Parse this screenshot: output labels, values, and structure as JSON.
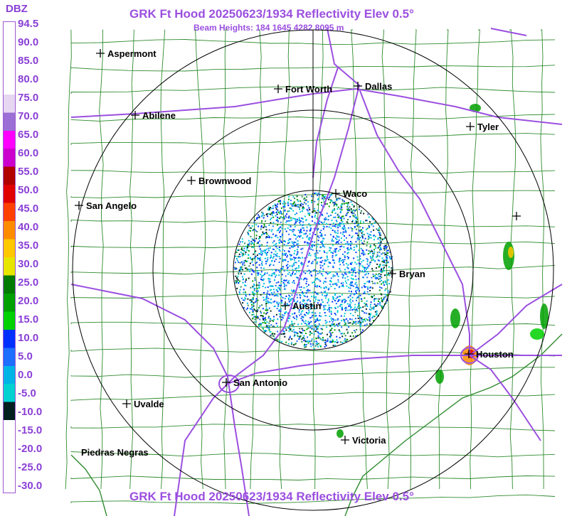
{
  "header": {
    "title": "GRK Ft Hood 20250623/1934 Reflectivity Elev 0.5°",
    "subtitle": "Beam Heights: 184 1645 4282 8095 m"
  },
  "footer": {
    "title": "GRK Ft Hood 20250623/1934 Reflectivity Elev 0.5°"
  },
  "legend": {
    "unit": "DBZ",
    "labels": [
      "94.5",
      "90.0",
      "85.0",
      "80.0",
      "75.0",
      "70.0",
      "65.0",
      "60.0",
      "55.0",
      "50.0",
      "45.0",
      "40.0",
      "35.0",
      "30.0",
      "25.0",
      "20.0",
      "15.0",
      "10.0",
      "5.0",
      "0.0",
      "-5.0",
      "-10.0",
      "-15.0",
      "-20.0",
      "-25.0",
      "-30.0"
    ],
    "colors": [
      "#ffffff",
      "#ffffff",
      "#ffffff",
      "#ffffff",
      "#e6d6f2",
      "#9b6fd6",
      "#ff00ff",
      "#cc00cc",
      "#b00000",
      "#e00000",
      "#ff4000",
      "#ff8c00",
      "#ffc800",
      "#e6e600",
      "#007a00",
      "#00a000",
      "#00d000",
      "#0030ff",
      "#1e6eff",
      "#00b4e6",
      "#00d2d2",
      "#002020",
      "#ffffff",
      "#ffffff",
      "#ffffff",
      "#ffffff"
    ]
  },
  "map": {
    "radar_site": "GRK Ft Hood",
    "cities": [
      {
        "name": "Aspermont"
      },
      {
        "name": "Fort Worth"
      },
      {
        "name": "Dallas"
      },
      {
        "name": "Abilene"
      },
      {
        "name": "Tyler"
      },
      {
        "name": "Brownwood"
      },
      {
        "name": "Waco"
      },
      {
        "name": "San Angelo"
      },
      {
        "name": "Bryan"
      },
      {
        "name": "Austin"
      },
      {
        "name": "Houston"
      },
      {
        "name": "San Antonio"
      },
      {
        "name": "Uvalde"
      },
      {
        "name": "Victoria"
      },
      {
        "name": "Piedras Negras"
      }
    ],
    "colors": {
      "county_lines": "#2e8b2e",
      "highways": "#9b4fe0",
      "range_rings": "#000000"
    }
  }
}
